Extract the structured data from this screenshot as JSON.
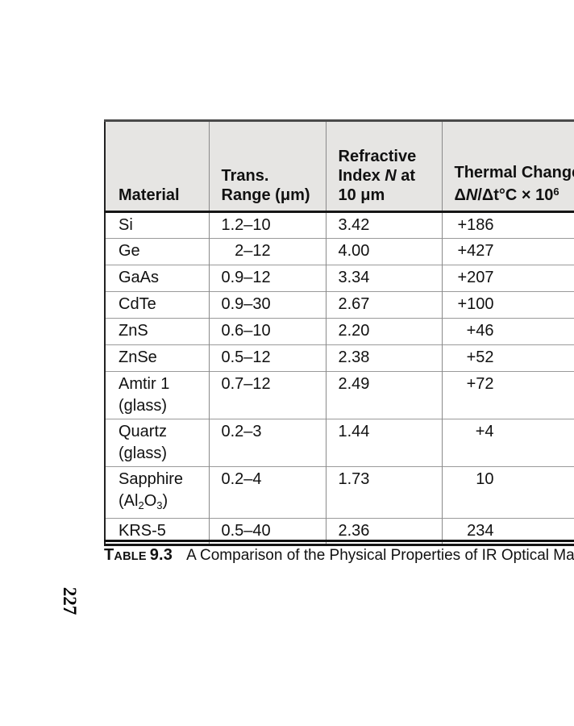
{
  "page": {
    "number": "227"
  },
  "caption": {
    "label_initial": "T",
    "label_rest": "ABLE",
    "number": "9.3",
    "text": "A Comparison of the Physical Properties of IR Optical Materials"
  },
  "table": {
    "header": {
      "material": "Material",
      "trans_line1": "Trans.",
      "trans_line2": "Range (μm)",
      "refr_line1": "Refractive",
      "refr_line2_pre": "Index ",
      "refr_line2_n": "N",
      "refr_line2_post": " at",
      "refr_line3": "10 μm",
      "thermal_line1": "Thermal Change",
      "thermal_delta": "Δ",
      "thermal_n": "N",
      "thermal_mid": "/Δt°C × 10",
      "thermal_sup": "6"
    },
    "rows": [
      {
        "material": "Si",
        "range": "1.2–10",
        "index": "3.42",
        "thermal": "+186"
      },
      {
        "material": "Ge",
        "range": "  2–12",
        "index": "4.00",
        "thermal": "+427"
      },
      {
        "material": "GaAs",
        "range": "0.9–12",
        "index": "3.34",
        "thermal": "+207"
      },
      {
        "material": "CdTe",
        "range": "0.9–30",
        "index": "2.67",
        "thermal": "+100"
      },
      {
        "material": "ZnS",
        "range": "0.6–10",
        "index": "2.20",
        "thermal": "+46"
      },
      {
        "material": "ZnSe",
        "range": "0.5–12",
        "index": "2.38",
        "thermal": "+52"
      },
      {
        "material": "Amtir 1",
        "material_line2": "(glass)",
        "range": "0.7–12",
        "index": "2.49",
        "thermal": "+72"
      },
      {
        "material": "Quartz",
        "material_line2": "(glass)",
        "range": "0.2–3",
        "index": "1.44",
        "thermal": "+4"
      },
      {
        "material": "Sapphire",
        "formula": {
          "pre": "(Al",
          "sub1": "2",
          "mid": "O",
          "sub2": "3",
          "post": ")"
        },
        "range": "0.2–4",
        "index": "1.73",
        "thermal": "10"
      },
      {
        "material": "KRS-5",
        "range": "0.5–40",
        "index": "2.36",
        "thermal": "234"
      }
    ]
  }
}
